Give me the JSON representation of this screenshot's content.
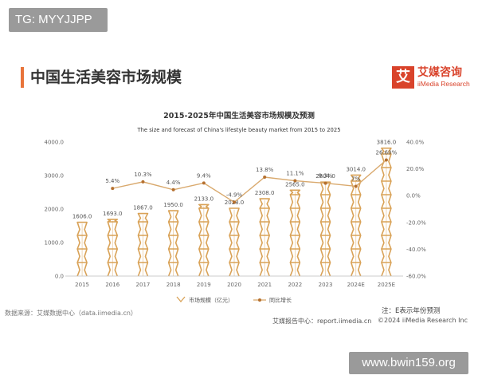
{
  "tag": "TG: MYYJJPP",
  "header": {
    "title": "中国生活美容市场规模"
  },
  "logo": {
    "mark": "艾",
    "cn": "艾媒咨询",
    "en": "iiMedia Research"
  },
  "colors": {
    "accent": "#e8743b",
    "bar": "#d9a257",
    "line": "#d9a96d",
    "logo": "#d9432b"
  },
  "chart_data": {
    "type": "bar",
    "title": "2015-2025年中国生活美容市场规模及预测",
    "subtitle": "The size and forecast of China's lifestyle beauty market from 2015 to 2025",
    "categories": [
      "2015",
      "2016",
      "2017",
      "2018",
      "2019",
      "2020",
      "2021",
      "2022",
      "2023",
      "2024E",
      "2025E"
    ],
    "series": [
      {
        "name": "市场规模（亿元）",
        "type": "bar",
        "axis": "left",
        "values": [
          1606.0,
          1693.0,
          1867.0,
          1950.0,
          2133.0,
          2028.0,
          2308.0,
          2565.0,
          2804.0,
          3014.0,
          3816.0
        ],
        "labels": [
          "1606.0",
          "1693.0",
          "1867.0",
          "1950.0",
          "2133.0",
          "2028.0",
          "2308.0",
          "2565.0",
          "2804.0",
          "3014.0",
          "3816.0"
        ]
      },
      {
        "name": "同比增长",
        "type": "line",
        "axis": "right",
        "values": [
          null,
          5.4,
          10.3,
          4.4,
          9.4,
          -4.9,
          13.8,
          11.1,
          9.3,
          7.0,
          26.6
        ],
        "labels": [
          "",
          "5.4%",
          "10.3%",
          "4.4%",
          "9.4%",
          "-4.9%",
          "13.8%",
          "11.1%",
          "9.3%",
          "7%",
          "26.60%"
        ]
      }
    ],
    "y_left": {
      "ylim": [
        0,
        4000
      ],
      "ticks": [
        "0.0",
        "1000.0",
        "2000.0",
        "3000.0",
        "4000.0"
      ]
    },
    "y_right": {
      "ylim": [
        -60,
        40
      ],
      "ticks": [
        "-60.0%",
        "-40.0%",
        "-20.0%",
        "0.0%",
        "20.0%",
        "40.0%"
      ]
    },
    "legend_position": "bottom",
    "grid": false
  },
  "note": "注：E表示年份预测",
  "source": "数据来源：艾媒数据中心（data.iimedia.cn）",
  "footer": {
    "report": "艾媒报告中心：report.iimedia.cn",
    "copyright": "©2024  iiMedia Research  Inc"
  },
  "watermark": "www.bwin159.org"
}
